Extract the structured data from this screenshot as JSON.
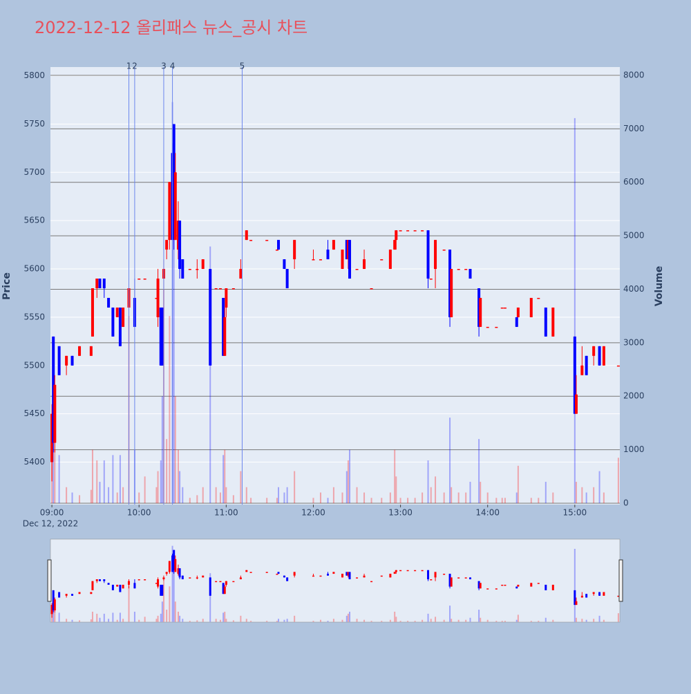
{
  "chart_data": {
    "type": "candlestick",
    "title": "2022-12-12 올리패스 뉴스_공시 차트",
    "ylabel": "Price",
    "y2label": "Volume",
    "x_date_label": "Dec 12, 2022",
    "increasing_color": "#ff0000",
    "decreasing_color": "#0000ff",
    "x": [
      "2022-12-12 09:00",
      "2022-12-12 09:01",
      "2022-12-12 09:02",
      "2022-12-12 09:05",
      "2022-12-12 09:10",
      "2022-12-12 09:14",
      "2022-12-12 09:19",
      "2022-12-12 09:27",
      "2022-12-12 09:28",
      "2022-12-12 09:31",
      "2022-12-12 09:33",
      "2022-12-12 09:36",
      "2022-12-12 09:39",
      "2022-12-12 09:42",
      "2022-12-12 09:45",
      "2022-12-12 09:47",
      "2022-12-12 09:49",
      "2022-12-12 09:53",
      "2022-12-12 09:57",
      "2022-12-12 10:00",
      "2022-12-12 10:04",
      "2022-12-12 10:12",
      "2022-12-12 10:13",
      "2022-12-12 10:15",
      "2022-12-12 10:16",
      "2022-12-12 10:17",
      "2022-12-12 10:19",
      "2022-12-12 10:21",
      "2022-12-12 10:23",
      "2022-12-12 10:24",
      "2022-12-12 10:25",
      "2022-12-12 10:27",
      "2022-12-12 10:28",
      "2022-12-12 10:30",
      "2022-12-12 10:35",
      "2022-12-12 10:40",
      "2022-12-12 10:44",
      "2022-12-12 10:49",
      "2022-12-12 10:53",
      "2022-12-12 10:56",
      "2022-12-12 10:58",
      "2022-12-12 10:59",
      "2022-12-12 11:00",
      "2022-12-12 11:05",
      "2022-12-12 11:10",
      "2022-12-12 11:14",
      "2022-12-12 11:17",
      "2022-12-12 11:28",
      "2022-12-12 11:35",
      "2022-12-12 11:36",
      "2022-12-12 11:40",
      "2022-12-12 11:42",
      "2022-12-12 11:47",
      "2022-12-12 12:00",
      "2022-12-12 12:05",
      "2022-12-12 12:10",
      "2022-12-12 12:14",
      "2022-12-12 12:20",
      "2022-12-12 12:23",
      "2022-12-12 12:24",
      "2022-12-12 12:25",
      "2022-12-12 12:30",
      "2022-12-12 12:35",
      "2022-12-12 12:40",
      "2022-12-12 12:47",
      "2022-12-12 12:53",
      "2022-12-12 12:56",
      "2022-12-12 12:57",
      "2022-12-12 13:00",
      "2022-12-12 13:05",
      "2022-12-12 13:10",
      "2022-12-12 13:15",
      "2022-12-12 13:19",
      "2022-12-12 13:21",
      "2022-12-12 13:24",
      "2022-12-12 13:30",
      "2022-12-12 13:34",
      "2022-12-12 13:35",
      "2022-12-12 13:40",
      "2022-12-12 13:45",
      "2022-12-12 13:48",
      "2022-12-12 13:54",
      "2022-12-12 13:55",
      "2022-12-12 14:00",
      "2022-12-12 14:06",
      "2022-12-12 14:10",
      "2022-12-12 14:12",
      "2022-12-12 14:20",
      "2022-12-12 14:21",
      "2022-12-12 14:30",
      "2022-12-12 14:35",
      "2022-12-12 14:40",
      "2022-12-12 14:45",
      "2022-12-12 15:00",
      "2022-12-12 15:01",
      "2022-12-12 15:05",
      "2022-12-12 15:08",
      "2022-12-12 15:13",
      "2022-12-12 15:17",
      "2022-12-12 15:20",
      "2022-12-12 15:30"
    ],
    "open": [
      5400,
      5530,
      5420,
      5520,
      5500,
      5510,
      5510,
      5510,
      5530,
      5580,
      5590,
      5590,
      5570,
      5560,
      5550,
      5560,
      5540,
      5560,
      5570,
      5590,
      5590,
      5570,
      5550,
      5560,
      5560,
      5590,
      5620,
      5630,
      5720,
      5750,
      5630,
      5620,
      5650,
      5610,
      5600,
      5600,
      5600,
      5600,
      5580,
      5580,
      5570,
      5510,
      5560,
      5580,
      5590,
      5630,
      5630,
      5630,
      5620,
      5630,
      5610,
      5600,
      5610,
      5610,
      5610,
      5620,
      5620,
      5600,
      5630,
      5610,
      5630,
      5600,
      5600,
      5580,
      5610,
      5600,
      5620,
      5630,
      5640,
      5640,
      5640,
      5640,
      5640,
      5590,
      5600,
      5620,
      5620,
      5550,
      5600,
      5600,
      5600,
      5580,
      5540,
      5540,
      5540,
      5560,
      5560,
      5550,
      5550,
      5550,
      5570,
      5560,
      5530,
      5530,
      5450,
      5490,
      5510,
      5510,
      5520,
      5500,
      5500
    ],
    "high": [
      5460,
      5530,
      5490,
      5520,
      5510,
      5510,
      5520,
      5520,
      5580,
      5590,
      5590,
      5590,
      5570,
      5560,
      5560,
      5560,
      5560,
      5590,
      5590,
      5590,
      5590,
      5570,
      5600,
      5560,
      5560,
      5610,
      5630,
      5690,
      5730,
      5750,
      5720,
      5670,
      5650,
      5610,
      5600,
      5610,
      5610,
      5600,
      5580,
      5580,
      5570,
      5560,
      5580,
      5580,
      5610,
      5640,
      5630,
      5630,
      5620,
      5630,
      5610,
      5600,
      5630,
      5620,
      5610,
      5630,
      5630,
      5620,
      5630,
      5630,
      5630,
      5600,
      5620,
      5580,
      5610,
      5620,
      5630,
      5640,
      5640,
      5640,
      5640,
      5640,
      5640,
      5590,
      5630,
      5620,
      5620,
      5600,
      5600,
      5600,
      5600,
      5580,
      5570,
      5540,
      5540,
      5560,
      5560,
      5550,
      5560,
      5570,
      5570,
      5560,
      5560,
      5530,
      5490,
      5520,
      5510,
      5520,
      5520,
      5520,
      5500
    ],
    "low": [
      5380,
      5410,
      5410,
      5490,
      5490,
      5500,
      5510,
      5510,
      5530,
      5570,
      5580,
      5570,
      5560,
      5530,
      5550,
      5520,
      5540,
      5540,
      5540,
      5590,
      5590,
      5570,
      5540,
      5500,
      5500,
      5580,
      5610,
      5620,
      5630,
      5620,
      5630,
      5610,
      5590,
      5590,
      5600,
      5590,
      5600,
      5500,
      5580,
      5580,
      5510,
      5510,
      5550,
      5580,
      5590,
      5630,
      5630,
      5630,
      5620,
      5620,
      5600,
      5580,
      5600,
      5610,
      5610,
      5610,
      5620,
      5600,
      5610,
      5600,
      5590,
      5600,
      5600,
      5580,
      5610,
      5600,
      5620,
      5620,
      5640,
      5640,
      5640,
      5640,
      5580,
      5590,
      5580,
      5620,
      5540,
      5550,
      5600,
      5600,
      5590,
      5530,
      5540,
      5540,
      5540,
      5560,
      5560,
      5540,
      5550,
      5550,
      5570,
      5530,
      5530,
      5450,
      5450,
      5490,
      5490,
      5500,
      5500,
      5500,
      5500
    ],
    "close": [
      5450,
      5420,
      5480,
      5490,
      5510,
      5500,
      5520,
      5520,
      5580,
      5590,
      5580,
      5580,
      5560,
      5530,
      5560,
      5520,
      5560,
      5580,
      5540,
      5590,
      5590,
      5570,
      5590,
      5500,
      5500,
      5600,
      5630,
      5690,
      5630,
      5640,
      5700,
      5650,
      5600,
      5590,
      5600,
      5600,
      5610,
      5500,
      5580,
      5580,
      5510,
      5550,
      5580,
      5580,
      5600,
      5640,
      5630,
      5630,
      5620,
      5620,
      5600,
      5580,
      5630,
      5610,
      5610,
      5610,
      5630,
      5620,
      5610,
      5630,
      5590,
      5600,
      5610,
      5580,
      5610,
      5620,
      5630,
      5640,
      5640,
      5640,
      5640,
      5640,
      5590,
      5590,
      5630,
      5620,
      5550,
      5600,
      5600,
      5600,
      5590,
      5540,
      5570,
      5540,
      5540,
      5560,
      5560,
      5540,
      5560,
      5570,
      5570,
      5530,
      5560,
      5450,
      5470,
      5500,
      5490,
      5520,
      5500,
      5520,
      5500
    ],
    "volume": [
      900,
      1500,
      1000,
      900,
      300,
      200,
      150,
      250,
      1000,
      800,
      400,
      800,
      300,
      900,
      200,
      900,
      300,
      3500,
      1000,
      200,
      500,
      300,
      600,
      800,
      2000,
      4000,
      1200,
      3500,
      7500,
      5000,
      2000,
      1000,
      600,
      300,
      100,
      150,
      300,
      4800,
      300,
      200,
      900,
      1000,
      300,
      150,
      600,
      300,
      100,
      100,
      100,
      300,
      200,
      300,
      600,
      100,
      200,
      100,
      300,
      200,
      600,
      800,
      1000,
      300,
      200,
      100,
      100,
      200,
      1000,
      500,
      100,
      100,
      100,
      200,
      800,
      300,
      500,
      200,
      1600,
      300,
      200,
      200,
      400,
      1200,
      400,
      200,
      100,
      100,
      100,
      200,
      700,
      100,
      100,
      400,
      200,
      7200,
      400,
      300,
      200,
      300,
      600,
      200,
      850
    ],
    "xlim": [
      "2022-12-12 08:59",
      "2022-12-12 15:31"
    ],
    "xticks": [
      {
        "value": "2022-12-12 09:00",
        "label": "09:00"
      },
      {
        "value": "2022-12-12 10:00",
        "label": "10:00"
      },
      {
        "value": "2022-12-12 11:00",
        "label": "11:00"
      },
      {
        "value": "2022-12-12 12:00",
        "label": "12:00"
      },
      {
        "value": "2022-12-12 13:00",
        "label": "13:00"
      },
      {
        "value": "2022-12-12 14:00",
        "label": "14:00"
      },
      {
        "value": "2022-12-12 15:00",
        "label": "15:00"
      }
    ],
    "ylim": [
      5356,
      5809
    ],
    "yticks": [
      5400,
      5450,
      5500,
      5550,
      5600,
      5650,
      5700,
      5750,
      5800
    ],
    "y2lim": [
      -26,
      8155
    ],
    "y2ticks": [
      0,
      1000,
      2000,
      3000,
      4000,
      5000,
      6000,
      7000,
      8000
    ],
    "annotations": [
      {
        "x": "2022-12-12 09:53",
        "text": "1"
      },
      {
        "x": "2022-12-12 09:57",
        "text": "2"
      },
      {
        "x": "2022-12-12 10:17",
        "text": "3"
      },
      {
        "x": "2022-12-12 10:23",
        "text": "4"
      },
      {
        "x": "2022-12-12 11:11",
        "text": "5"
      }
    ],
    "annotation_color": "#6b86ee",
    "grid": true
  }
}
